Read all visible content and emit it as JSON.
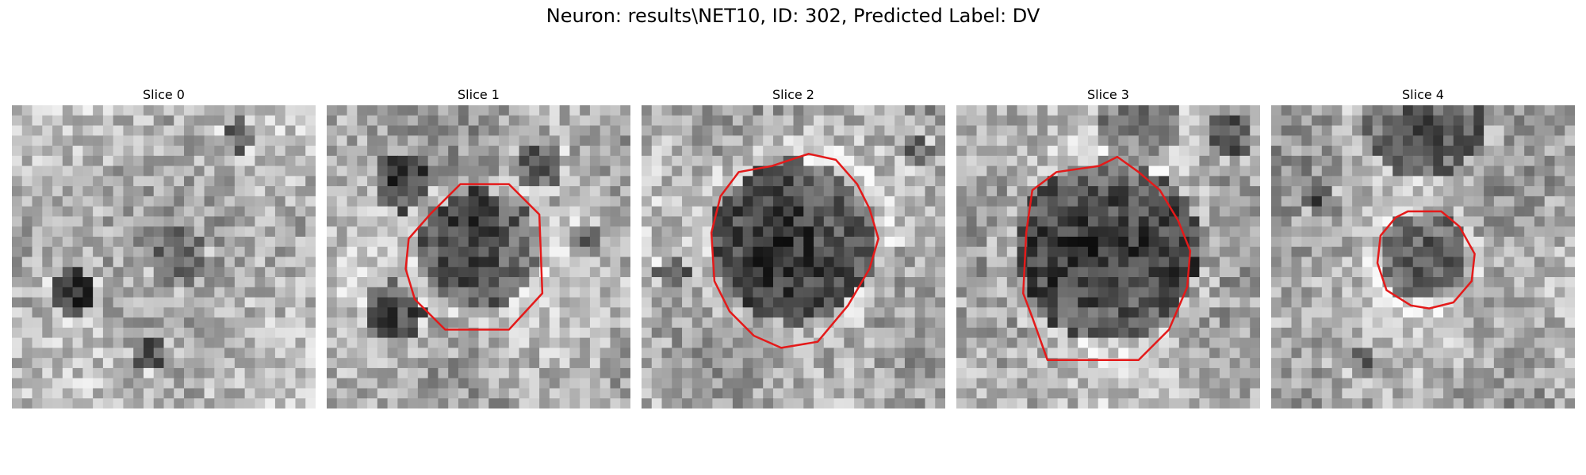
{
  "figure": {
    "title": "Neuron: results\\NET10, ID: 302, Predicted Label: DV"
  },
  "panels": [
    {
      "title": "Slice 0",
      "has_contour": false,
      "contour_color": "#e41a1a"
    },
    {
      "title": "Slice 1",
      "has_contour": true,
      "contour_color": "#e41a1a"
    },
    {
      "title": "Slice 2",
      "has_contour": true,
      "contour_color": "#e41a1a"
    },
    {
      "title": "Slice 3",
      "has_contour": true,
      "contour_color": "#e41a1a"
    },
    {
      "title": "Slice 4",
      "has_contour": true,
      "contour_color": "#e41a1a"
    }
  ],
  "colors": {
    "colormap": "gray",
    "contour": "#e41a1a"
  }
}
